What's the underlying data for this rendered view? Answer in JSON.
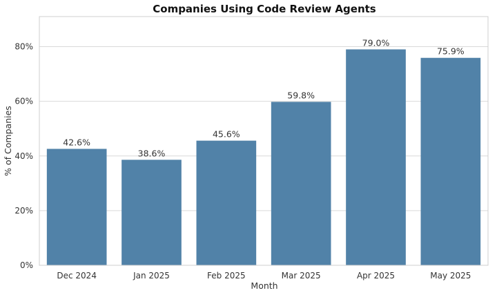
{
  "chart_data": {
    "type": "bar",
    "title": "Companies Using Code Review Agents",
    "xlabel": "Month",
    "ylabel": "% of Companies",
    "categories": [
      "Dec 2024",
      "Jan 2025",
      "Feb 2025",
      "Mar 2025",
      "Apr 2025",
      "May 2025"
    ],
    "values": [
      42.6,
      38.6,
      45.6,
      59.8,
      79.0,
      75.9
    ],
    "data_labels": [
      "42.6%",
      "38.6%",
      "45.6%",
      "59.8%",
      "79.0%",
      "75.9%"
    ],
    "ylim": [
      0,
      91
    ],
    "yticks": [
      0,
      20,
      40,
      60,
      80
    ],
    "ytick_labels": [
      "0%",
      "20%",
      "40%",
      "60%",
      "80%"
    ],
    "grid": true,
    "bar_color": "#5182a8"
  }
}
